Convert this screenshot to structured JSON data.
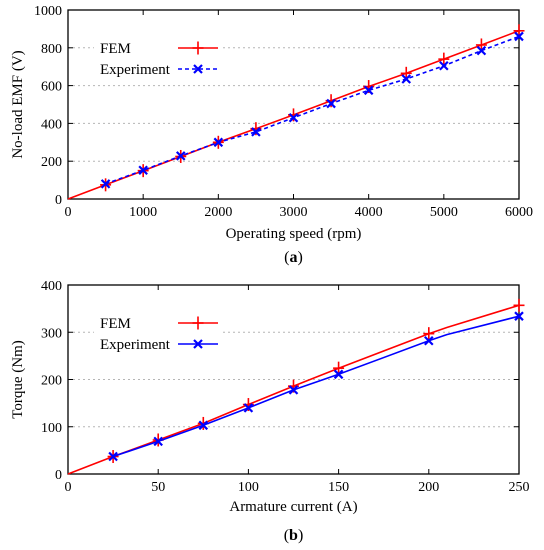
{
  "chart_data": [
    {
      "type": "line",
      "caption": "a",
      "xlabel": "Operating speed (rpm)",
      "ylabel": "No-load EMF (V)",
      "xlim": [
        0,
        6000
      ],
      "ylim": [
        0,
        1000
      ],
      "xticks": [
        0,
        1000,
        2000,
        3000,
        4000,
        5000,
        6000
      ],
      "yticks": [
        0,
        200,
        400,
        600,
        800,
        1000
      ],
      "grid": "horizontal",
      "legend_position": "top-left",
      "series": [
        {
          "name": "FEM",
          "color": "#ff0000",
          "line": "solid",
          "marker": "plus",
          "x": [
            0,
            500,
            1000,
            1500,
            2000,
            2500,
            3000,
            3500,
            4000,
            4500,
            5000,
            5500,
            6000
          ],
          "y": [
            0,
            75,
            150,
            225,
            300,
            372,
            445,
            520,
            595,
            665,
            740,
            815,
            890
          ]
        },
        {
          "name": "Experiment",
          "color": "#0000ff",
          "line": "dashed",
          "marker": "x",
          "x": [
            500,
            1000,
            1500,
            2000,
            2500,
            3000,
            3500,
            4000,
            4500,
            5000,
            5500,
            6000
          ],
          "y": [
            80,
            152,
            228,
            300,
            355,
            430,
            505,
            575,
            635,
            705,
            785,
            860
          ]
        }
      ]
    },
    {
      "type": "line",
      "caption": "b",
      "xlabel": "Armature current (A)",
      "ylabel": "Torque (Nm)",
      "xlim": [
        0,
        250
      ],
      "ylim": [
        0,
        400
      ],
      "xticks": [
        0,
        50,
        100,
        150,
        200,
        250
      ],
      "yticks": [
        0,
        100,
        200,
        300,
        400
      ],
      "grid": "horizontal",
      "legend_position": "top-left",
      "series": [
        {
          "name": "FEM",
          "color": "#ff0000",
          "line": "solid",
          "marker": "plus",
          "x": [
            0,
            25,
            50,
            75,
            100,
            125,
            150,
            200,
            210,
            250
          ],
          "y": [
            0,
            37,
            72,
            107,
            147,
            186,
            224,
            297,
            310,
            357
          ],
          "marked": [
            false,
            true,
            true,
            true,
            true,
            true,
            true,
            true,
            false,
            true
          ]
        },
        {
          "name": "Experiment",
          "color": "#0000ff",
          "line": "solid",
          "marker": "x",
          "x": [
            25,
            50,
            75,
            100,
            125,
            150,
            200,
            210,
            250
          ],
          "y": [
            37,
            69,
            103,
            140,
            178,
            211,
            282,
            295,
            334
          ],
          "marked": [
            true,
            true,
            true,
            true,
            true,
            true,
            true,
            false,
            true
          ]
        }
      ]
    }
  ]
}
